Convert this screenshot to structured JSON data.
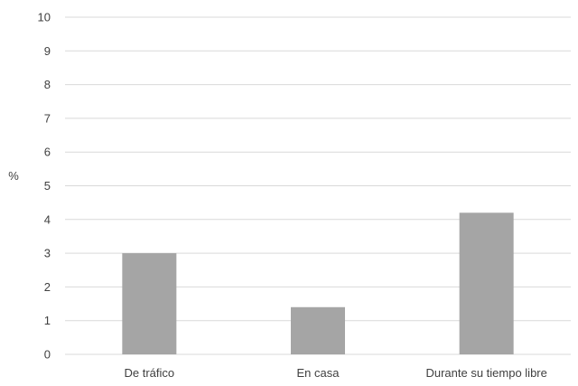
{
  "chart_data": {
    "type": "bar",
    "categories": [
      "De tráfico",
      "En casa",
      "Durante su tiempo libre"
    ],
    "values": [
      3.0,
      1.4,
      4.2
    ],
    "title": "",
    "xlabel": "",
    "ylabel": "%",
    "ylim": [
      0,
      10
    ],
    "yticks": [
      "0",
      "1",
      "2",
      "3",
      "4",
      "5",
      "6",
      "7",
      "8",
      "9",
      "10"
    ],
    "grid": true,
    "legend": "none",
    "bar_color": "#a5a5a5",
    "grid_color": "#d9d9d9",
    "text_color": "#404040"
  }
}
